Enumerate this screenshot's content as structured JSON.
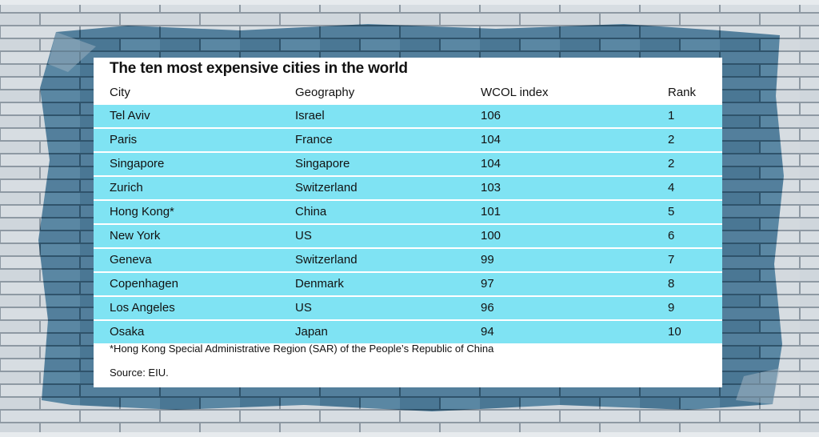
{
  "chart_data": {
    "type": "table",
    "title": "The ten most expensive cities in the world",
    "columns": [
      "City",
      "Geography",
      "WCOL index",
      "Rank"
    ],
    "rows": [
      [
        "Tel Aviv",
        "Israel",
        "106",
        "1"
      ],
      [
        "Paris",
        "France",
        "104",
        "2"
      ],
      [
        "Singapore",
        "Singapore",
        "104",
        "2"
      ],
      [
        "Zurich",
        "Switzerland",
        "103",
        "4"
      ],
      [
        "Hong Kong*",
        "China",
        "101",
        "5"
      ],
      [
        "New York",
        "US",
        "100",
        "6"
      ],
      [
        "Geneva",
        "Switzerland",
        "99",
        "7"
      ],
      [
        "Copenhagen",
        "Denmark",
        "97",
        "8"
      ],
      [
        "Los Angeles",
        "US",
        "96",
        "9"
      ],
      [
        "Osaka",
        "Japan",
        "94",
        "10"
      ]
    ],
    "footnote": "*Hong Kong Special Administrative Region (SAR) of the People’s Republic of China",
    "source": "Source: EIU."
  },
  "colors": {
    "row_fill": "#7fe3f3",
    "card_bg": "#ffffff",
    "wall_paint": "#4f7f9c",
    "wall_brick": "#d5dbe0"
  }
}
